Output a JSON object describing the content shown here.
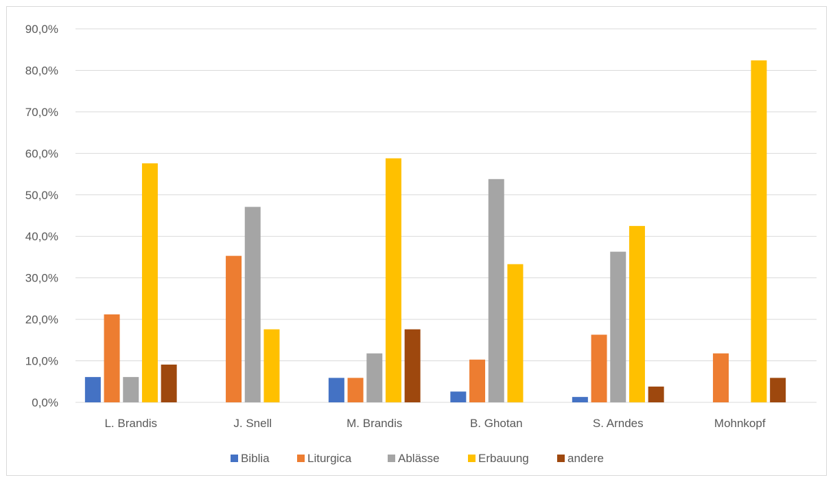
{
  "chart_data": {
    "type": "bar",
    "title": "",
    "xlabel": "",
    "ylabel": "",
    "ylim": [
      0,
      90
    ],
    "yticks": [
      "0,0%",
      "10,0%",
      "20,0%",
      "30,0%",
      "40,0%",
      "50,0%",
      "60,0%",
      "70,0%",
      "80,0%",
      "90,0%"
    ],
    "categories": [
      "L. Brandis",
      "J. Snell",
      "M. Brandis",
      "B. Ghotan",
      "S. Arndes",
      "Mohnkopf"
    ],
    "series": [
      {
        "name": "Biblia",
        "color": "#4472c4",
        "values": [
          6.1,
          0,
          5.9,
          2.6,
          1.3,
          0
        ]
      },
      {
        "name": "Liturgica",
        "color": "#ed7d31",
        "values": [
          21.2,
          35.3,
          5.9,
          10.3,
          16.3,
          11.8
        ]
      },
      {
        "name": "Ablässe",
        "color": "#a5a5a5",
        "values": [
          6.1,
          47.1,
          11.8,
          53.8,
          36.3,
          0
        ]
      },
      {
        "name": "Erbauung",
        "color": "#ffc000",
        "values": [
          57.6,
          17.6,
          58.8,
          33.3,
          42.5,
          82.4
        ]
      },
      {
        "name": "andere",
        "color": "#9e480e",
        "values": [
          9.1,
          0,
          17.6,
          0,
          3.8,
          5.9
        ]
      }
    ],
    "grid": true,
    "legend": "bottom",
    "gridline_color": "#d9d9d9"
  }
}
